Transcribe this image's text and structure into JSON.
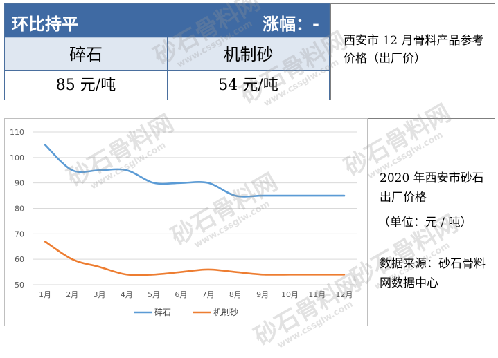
{
  "price_table": {
    "trend": "环比持平",
    "change": "涨幅：-",
    "columns": [
      {
        "name": "碎石",
        "price": "85 元/吨"
      },
      {
        "name": "机制砂",
        "price": "54 元/吨"
      }
    ],
    "note": "西安市 12 月骨料产品参考价格（出厂价）"
  },
  "info": {
    "description": "2020 年西安市砂石出厂价格",
    "unit": "（单位：元 / 吨）",
    "source": "数据来源：砂石骨料网数据中心"
  },
  "watermark": {
    "text": "砂石骨料网",
    "url": "www.cssglw.com"
  },
  "colors": {
    "gravel": "#5b9bd5",
    "sand": "#ed7d31",
    "header": "#3f6aa3"
  },
  "chart_data": {
    "type": "line",
    "title": "",
    "xlabel": "",
    "ylabel": "",
    "categories": [
      "1月",
      "2月",
      "3月",
      "4月",
      "5月",
      "6月",
      "7月",
      "8月",
      "9月",
      "10月",
      "11月",
      "12月"
    ],
    "ylim": [
      50,
      110
    ],
    "yticks": [
      50,
      60,
      70,
      80,
      90,
      100,
      110
    ],
    "grid": true,
    "legend": "bottom",
    "series": [
      {
        "name": "碎石",
        "values": [
          105,
          95,
          95,
          95,
          90,
          90,
          90,
          85,
          85,
          85,
          85,
          85
        ]
      },
      {
        "name": "机制砂",
        "values": [
          67,
          60,
          57,
          54,
          54,
          55,
          56,
          55,
          54,
          54,
          54,
          54
        ]
      }
    ]
  }
}
